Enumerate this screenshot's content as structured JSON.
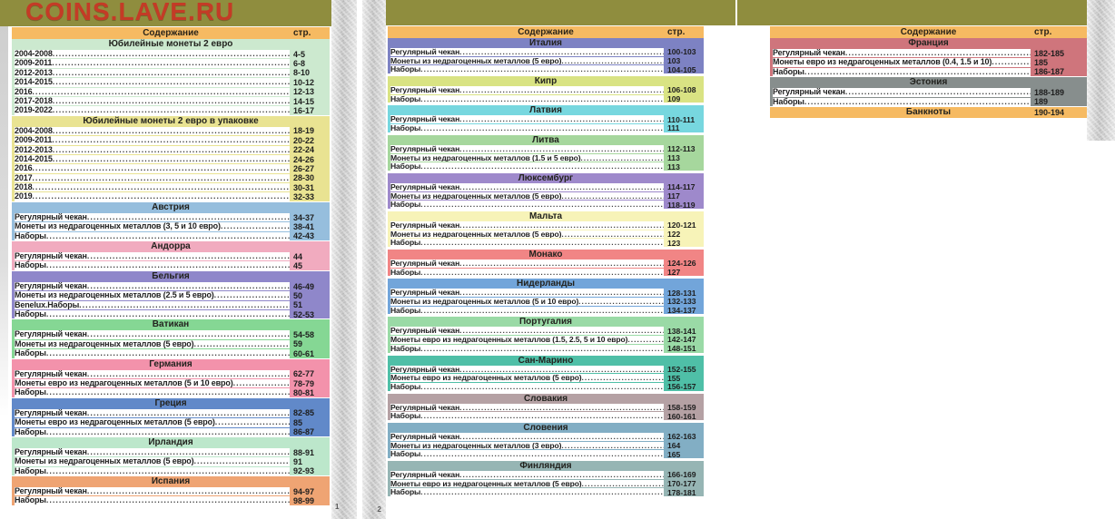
{
  "site_banner": {
    "title": "COINS.LAVE.RU",
    "bar_color": "#8f8d3e",
    "title_color": "#c43b26"
  },
  "toc_header": {
    "contents_label": "Содержание",
    "page_label": "стр.",
    "bg": "#f6ba62"
  },
  "page_markers": {
    "first": "1",
    "second": "2"
  },
  "pages": [
    {
      "name": "page-1",
      "sections": [
        {
          "title": "Юбилейные монеты 2 евро",
          "color": "#cce9cf",
          "rows": [
            {
              "label": "2004-2008",
              "pages": "4-5"
            },
            {
              "label": "2009-2011",
              "pages": "6-8"
            },
            {
              "label": "2012-2013",
              "pages": "8-10"
            },
            {
              "label": "2014-2015",
              "pages": "10-12"
            },
            {
              "label": "2016",
              "pages": "12-13"
            },
            {
              "label": "2017-2018",
              "pages": "14-15"
            },
            {
              "label": "2019-2022",
              "pages": "16-17"
            }
          ]
        },
        {
          "title": "Юбилейные монеты 2 евро в упаковке",
          "color": "#e9e392",
          "rows": [
            {
              "label": "2004-2008",
              "pages": "18-19"
            },
            {
              "label": "2009-2011",
              "pages": "20-22"
            },
            {
              "label": "2012-2013",
              "pages": "22-24"
            },
            {
              "label": "2014-2015",
              "pages": "24-26"
            },
            {
              "label": "2016",
              "pages": "26-27"
            },
            {
              "label": "2017",
              "pages": "28-30"
            },
            {
              "label": "2018",
              "pages": "30-31"
            },
            {
              "label": "2019",
              "pages": "32-33"
            }
          ]
        },
        {
          "title": "Австрия",
          "color": "#96bedd",
          "rows": [
            {
              "label": "Регулярный чекан",
              "pages": "34-37"
            },
            {
              "label": "Монеты из недрагоценных металлов (3, 5 и 10 евро)",
              "pages": "38-41"
            },
            {
              "label": "Наборы",
              "pages": "42-43"
            }
          ]
        },
        {
          "title": "Андорра",
          "color": "#f1abbf",
          "rows": [
            {
              "label": "Регулярный чекан",
              "pages": "44"
            },
            {
              "label": "Наборы",
              "pages": "45"
            }
          ]
        },
        {
          "title": "Бельгия",
          "color": "#8f87ca",
          "rows": [
            {
              "label": "Регулярный чекан",
              "pages": "46-49"
            },
            {
              "label": "Монеты из недрагоценных металлов (2.5 и 5 евро)",
              "pages": "50"
            },
            {
              "label": "Benelux.Наборы",
              "pages": "51"
            },
            {
              "label": "Наборы",
              "pages": "52-53"
            }
          ]
        },
        {
          "title": "Ватикан",
          "color": "#85d794",
          "rows": [
            {
              "label": "Регулярный чекан",
              "pages": "54-58"
            },
            {
              "label": "Монеты из недрагоценных металлов (5 евро)",
              "pages": "59"
            },
            {
              "label": "Наборы",
              "pages": "60-61"
            }
          ]
        },
        {
          "title": "Германия",
          "color": "#f392ab",
          "rows": [
            {
              "label": "Регулярный чекан",
              "pages": "62-77"
            },
            {
              "label": "Монеты евро из недрагоценных металлов (5 и 10 евро)",
              "pages": "78-79"
            },
            {
              "label": "Наборы",
              "pages": "80-81"
            }
          ]
        },
        {
          "title": "Греция",
          "color": "#6189c9",
          "rows": [
            {
              "label": "Регулярный чекан",
              "pages": "82-85"
            },
            {
              "label": "Монеты евро из недрагоценных металлов (5 евро)",
              "pages": "85"
            },
            {
              "label": "Наборы",
              "pages": "86-87"
            }
          ]
        },
        {
          "title": "Ирландия",
          "color": "#bce7cb",
          "rows": [
            {
              "label": "Регулярный чекан",
              "pages": "88-91"
            },
            {
              "label": "Монеты из недрагоценных металлов (5 евро)",
              "pages": "91"
            },
            {
              "label": "Наборы",
              "pages": "92-93"
            }
          ]
        },
        {
          "title": "Испания",
          "color": "#efa473",
          "rows": [
            {
              "label": "Регулярный чекан",
              "pages": "94-97"
            },
            {
              "label": "Наборы",
              "pages": "98-99"
            }
          ]
        }
      ]
    },
    {
      "name": "page-2",
      "sections": [
        {
          "title": "Италия",
          "color": "#7d82c3",
          "rows": [
            {
              "label": "Регулярный чекан",
              "pages": "100-103"
            },
            {
              "label": "Монеты из недрагоценных металлов (5 евро)",
              "pages": "103"
            },
            {
              "label": "Наборы",
              "pages": "104-105"
            }
          ]
        },
        {
          "title": "Кипр",
          "color": "#d9e383",
          "rows": [
            {
              "label": "Регулярный чекан",
              "pages": "106-108"
            },
            {
              "label": "Наборы",
              "pages": "109"
            }
          ]
        },
        {
          "title": "Латвия",
          "color": "#77d7df",
          "rows": [
            {
              "label": "Регулярный чекан",
              "pages": "110-111"
            },
            {
              "label": "Наборы",
              "pages": "111"
            }
          ]
        },
        {
          "title": "Литва",
          "color": "#a6d79d",
          "rows": [
            {
              "label": "Регулярный чекан",
              "pages": "112-113"
            },
            {
              "label": "Монеты из недрагоценных металлов (1.5 и 5 евро)",
              "pages": "113"
            },
            {
              "label": "Наборы",
              "pages": "113"
            }
          ]
        },
        {
          "title": "Люксембург",
          "color": "#9e89cb",
          "rows": [
            {
              "label": "Регулярный чекан",
              "pages": "114-117"
            },
            {
              "label": "Монеты из недрагоценных металлов (5 евро)",
              "pages": "117"
            },
            {
              "label": "Наборы",
              "pages": "118-119"
            }
          ]
        },
        {
          "title": "Мальта",
          "color": "#f7f3b8",
          "rows": [
            {
              "label": "Регулярный чекан",
              "pages": "120-121"
            },
            {
              "label": "Монеты из недрагоценных металлов (5 евро)",
              "pages": "122"
            },
            {
              "label": "Наборы",
              "pages": "123"
            }
          ]
        },
        {
          "title": "Монако",
          "color": "#f18585",
          "rows": [
            {
              "label": "Регулярный чекан",
              "pages": "124-126"
            },
            {
              "label": "Наборы",
              "pages": "127"
            }
          ]
        },
        {
          "title": "Нидерланды",
          "color": "#72a5da",
          "rows": [
            {
              "label": "Регулярный чекан",
              "pages": "128-131"
            },
            {
              "label": "Монеты из недрагоценных металлов (5 и 10 евро)",
              "pages": "132-133"
            },
            {
              "label": "Наборы",
              "pages": "134-137"
            }
          ]
        },
        {
          "title": "Португалия",
          "color": "#9adaa6",
          "rows": [
            {
              "label": "Регулярный чекан",
              "pages": "138-141"
            },
            {
              "label": "Монеты евро из недрагоценных металлов (1.5, 2.5, 5 и 10 евро)",
              "pages": "142-147"
            },
            {
              "label": "Наборы",
              "pages": "148-151"
            }
          ]
        },
        {
          "title": "Сан-Марино",
          "color": "#4fbfa7",
          "rows": [
            {
              "label": "Регулярный чекан",
              "pages": "152-155"
            },
            {
              "label": "Монеты евро из недрагоценных металлов (5 евро)",
              "pages": "155"
            },
            {
              "label": "Наборы",
              "pages": "156-157"
            }
          ]
        },
        {
          "title": "Словакия",
          "color": "#b5a1a4",
          "rows": [
            {
              "label": "Регулярный чекан",
              "pages": "158-159"
            },
            {
              "label": "Наборы",
              "pages": "160-161"
            }
          ]
        },
        {
          "title": "Словения",
          "color": "#82aec4",
          "rows": [
            {
              "label": "Регулярный чекан",
              "pages": "162-163"
            },
            {
              "label": "Монеты из недрагоценных металлов (3 евро)",
              "pages": "164"
            },
            {
              "label": "Наборы",
              "pages": "165"
            }
          ]
        },
        {
          "title": "Финляндия",
          "color": "#96b5b4",
          "rows": [
            {
              "label": "Регулярный чекан",
              "pages": "166-169"
            },
            {
              "label": "Монеты евро из недрагоценных металлов (5 евро)",
              "pages": "170-177"
            },
            {
              "label": "Наборы",
              "pages": "178-181"
            }
          ]
        }
      ]
    },
    {
      "name": "page-3",
      "sections": [
        {
          "title": "Франция",
          "color": "#cf757c",
          "rows": [
            {
              "label": "Регулярный чекан",
              "pages": "182-185"
            },
            {
              "label": "Монеты евро из недрагоценных металлов (0.4, 1.5 и 10)",
              "pages": "185"
            },
            {
              "label": "Наборы",
              "pages": "186-187"
            }
          ]
        },
        {
          "title": "Эстония",
          "color": "#878e8d",
          "rows": [
            {
              "label": "Регулярный чекан",
              "pages": "188-189"
            },
            {
              "label": "Наборы",
              "pages": "189"
            }
          ]
        },
        {
          "title": "Банкноты",
          "color": "#f6ba62",
          "pages": "190-194",
          "rows": []
        }
      ]
    }
  ]
}
